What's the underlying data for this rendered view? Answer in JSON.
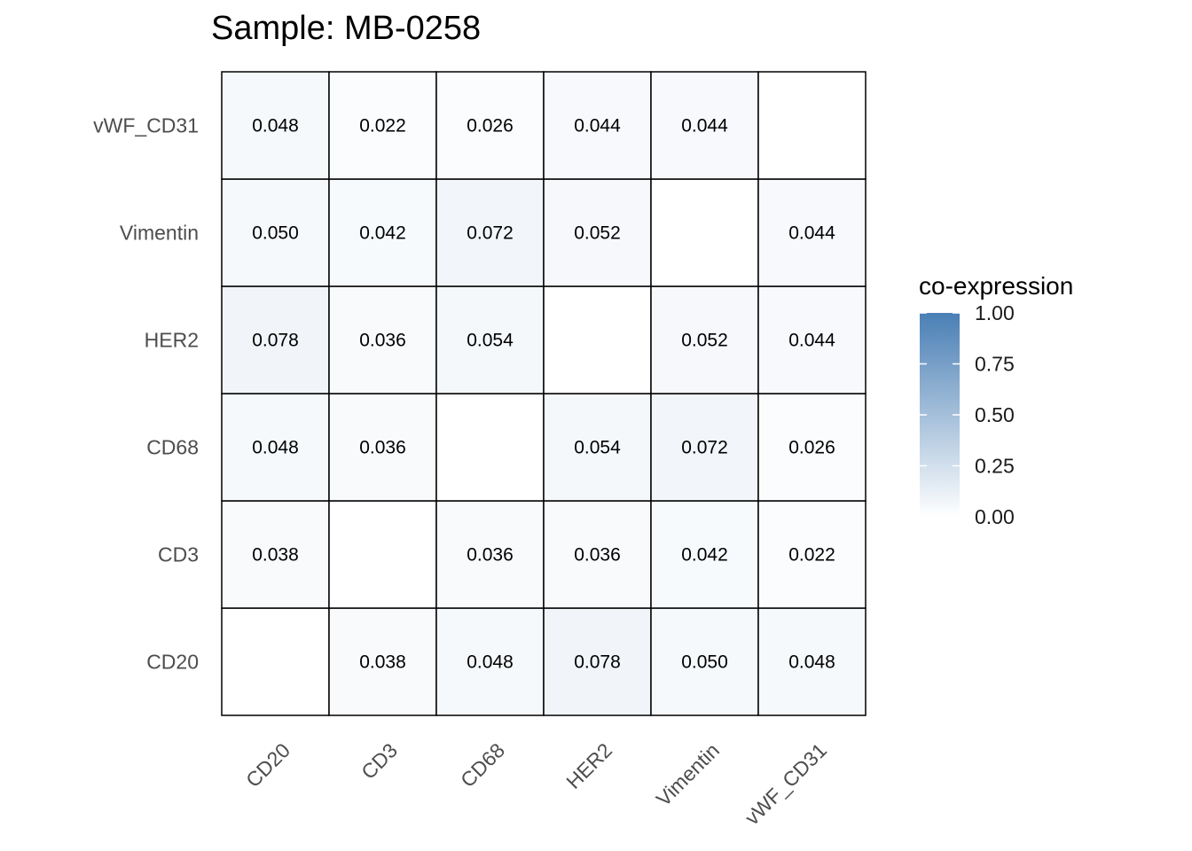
{
  "chart_data": {
    "type": "heatmap",
    "title": "Sample: MB-0258",
    "x_categories": [
      "CD20",
      "CD3",
      "CD68",
      "HER2",
      "Vimentin",
      "vWF_CD31"
    ],
    "y_categories": [
      "CD20",
      "CD3",
      "CD68",
      "HER2",
      "Vimentin",
      "vWF_CD31"
    ],
    "values": [
      [
        null,
        0.038,
        0.048,
        0.078,
        0.05,
        0.048
      ],
      [
        0.038,
        null,
        0.036,
        0.036,
        0.042,
        0.022
      ],
      [
        0.048,
        0.036,
        null,
        0.054,
        0.072,
        0.026
      ],
      [
        0.078,
        0.036,
        0.054,
        null,
        0.052,
        0.044
      ],
      [
        0.05,
        0.042,
        0.072,
        0.052,
        null,
        0.044
      ],
      [
        0.048,
        0.022,
        0.026,
        0.044,
        0.044,
        null
      ]
    ],
    "labels": [
      [
        "",
        "0.038",
        "0.048",
        "0.078",
        "0.050",
        "0.048"
      ],
      [
        "0.038",
        "",
        "0.036",
        "0.036",
        "0.042",
        "0.022"
      ],
      [
        "0.048",
        "0.036",
        "",
        "0.054",
        "0.072",
        "0.026"
      ],
      [
        "0.078",
        "0.036",
        "0.054",
        "",
        "0.052",
        "0.044"
      ],
      [
        "0.050",
        "0.042",
        "0.072",
        "0.052",
        "",
        "0.044"
      ],
      [
        "0.048",
        "0.022",
        "0.026",
        "0.044",
        "0.044",
        ""
      ]
    ],
    "color_scale": {
      "low": "#ffffff",
      "high": "#4a7fb5",
      "min": 0,
      "max": 1
    },
    "legend": {
      "title": "co-expression",
      "ticks": [
        "0.00",
        "0.25",
        "0.50",
        "0.75",
        "1.00"
      ],
      "position": "right"
    },
    "cell_border_color": "#000000",
    "grid": false
  }
}
